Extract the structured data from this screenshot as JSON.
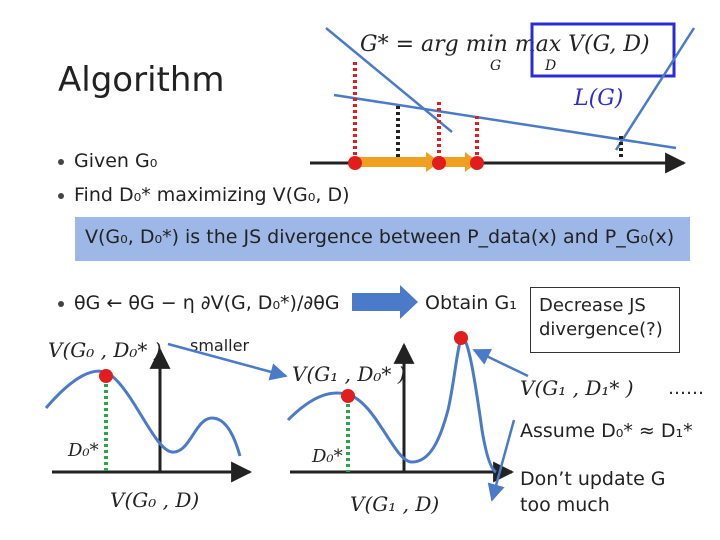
{
  "slide": {
    "title": "Algorithm",
    "bullets": {
      "given": "Given G₀",
      "find": "Find D₀* maximizing V(G₀, D)",
      "update": "θG ← θG − η ∂V(G, D₀*)/∂θG"
    },
    "objective": "G* = arg min max V(G, D)",
    "objective_sub_g": "G",
    "objective_sub_d": "D",
    "loss_label": "L(G)",
    "js_box": "V(G₀, D₀*) is the JS divergence between P_data(x) and P_G₀(x)",
    "obtain": "Obtain G₁",
    "callout": "Decrease JS divergence(?)",
    "smaller": "smaller",
    "plots": {
      "left_top": "V(G₀ , D₀* )",
      "left_marker": "D₀*",
      "left_bottom": "V(G₀ , D)",
      "mid_top": "V(G₁ , D₀* )",
      "mid_marker": "D₀*",
      "mid_bottom": "V(G₁ , D)",
      "right_top": "V(G₁ , D₁* )",
      "ellipsis": "……"
    },
    "assume": "Assume D₀* ≈ D₁*",
    "dont_update": "Don’t update G too much",
    "colors": {
      "accent_blue": "#4a7ac8",
      "box_fill": "#9db8e6",
      "red": "#e11d1d",
      "green": "#2ea44f",
      "orange": "#f0a020",
      "navy": "#2b2bd6"
    }
  }
}
